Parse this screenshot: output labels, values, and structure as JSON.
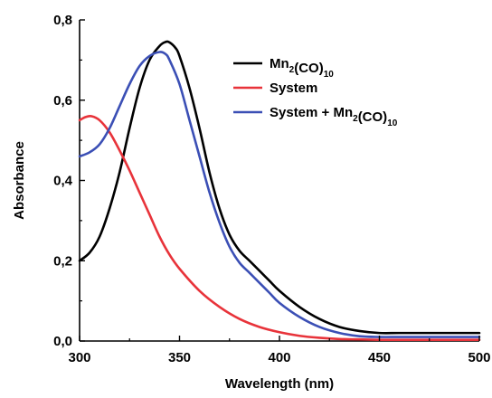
{
  "chart_data": {
    "type": "line",
    "title": "",
    "xlabel": "Wavelength (nm)",
    "ylabel": "Absorbance",
    "xlim": [
      300,
      500
    ],
    "ylim": [
      0.0,
      0.8
    ],
    "x_ticks": [
      300,
      350,
      400,
      450,
      500
    ],
    "x_tick_labels": [
      "300",
      "350",
      "400",
      "450",
      "500"
    ],
    "y_ticks": [
      0.0,
      0.2,
      0.4,
      0.6,
      0.8
    ],
    "y_tick_labels": [
      "0,0",
      "0,2",
      "0,4",
      "0,6",
      "0,8"
    ],
    "grid": false,
    "legend_position": "top-right",
    "series": [
      {
        "name": "Mn2(CO)10",
        "legend_parts": [
          [
            "Mn",
            ""
          ],
          [
            "2",
            "sub"
          ],
          [
            "(CO)",
            ""
          ],
          [
            "10",
            "sub"
          ]
        ],
        "color": "#000000",
        "x": [
          300,
          305,
          310,
          315,
          320,
          325,
          330,
          335,
          340,
          343,
          345,
          348,
          350,
          355,
          360,
          365,
          370,
          375,
          380,
          385,
          390,
          395,
          400,
          410,
          420,
          430,
          440,
          450,
          460,
          475,
          500
        ],
        "y": [
          0.2,
          0.22,
          0.26,
          0.33,
          0.42,
          0.53,
          0.63,
          0.7,
          0.735,
          0.745,
          0.744,
          0.73,
          0.71,
          0.63,
          0.53,
          0.42,
          0.33,
          0.265,
          0.225,
          0.2,
          0.175,
          0.15,
          0.125,
          0.085,
          0.055,
          0.035,
          0.025,
          0.02,
          0.02,
          0.02,
          0.02
        ]
      },
      {
        "name": "System",
        "legend_parts": [
          [
            "System",
            ""
          ]
        ],
        "color": "#e8333a",
        "x": [
          300,
          303,
          306,
          310,
          315,
          320,
          325,
          330,
          335,
          340,
          345,
          350,
          360,
          370,
          380,
          390,
          400,
          410,
          420,
          430,
          440,
          450,
          460,
          475,
          500
        ],
        "y": [
          0.55,
          0.558,
          0.56,
          0.55,
          0.52,
          0.475,
          0.425,
          0.37,
          0.315,
          0.26,
          0.215,
          0.18,
          0.125,
          0.085,
          0.055,
          0.035,
          0.022,
          0.013,
          0.008,
          0.005,
          0.004,
          0.003,
          0.003,
          0.003,
          0.003
        ]
      },
      {
        "name": "System + Mn2(CO)10",
        "legend_parts": [
          [
            "System + Mn",
            ""
          ],
          [
            "2",
            "sub"
          ],
          [
            "(CO)",
            ""
          ],
          [
            "10",
            "sub"
          ]
        ],
        "color": "#3b4fb5",
        "x": [
          300,
          305,
          310,
          315,
          320,
          325,
          330,
          335,
          340,
          343,
          345,
          350,
          355,
          360,
          365,
          370,
          375,
          380,
          385,
          390,
          395,
          400,
          410,
          420,
          430,
          440,
          450,
          460,
          475,
          500
        ],
        "y": [
          0.46,
          0.47,
          0.49,
          0.53,
          0.585,
          0.64,
          0.685,
          0.71,
          0.72,
          0.715,
          0.7,
          0.64,
          0.55,
          0.46,
          0.37,
          0.295,
          0.235,
          0.195,
          0.17,
          0.145,
          0.12,
          0.095,
          0.06,
          0.035,
          0.02,
          0.012,
          0.01,
          0.01,
          0.01,
          0.01
        ]
      }
    ]
  }
}
